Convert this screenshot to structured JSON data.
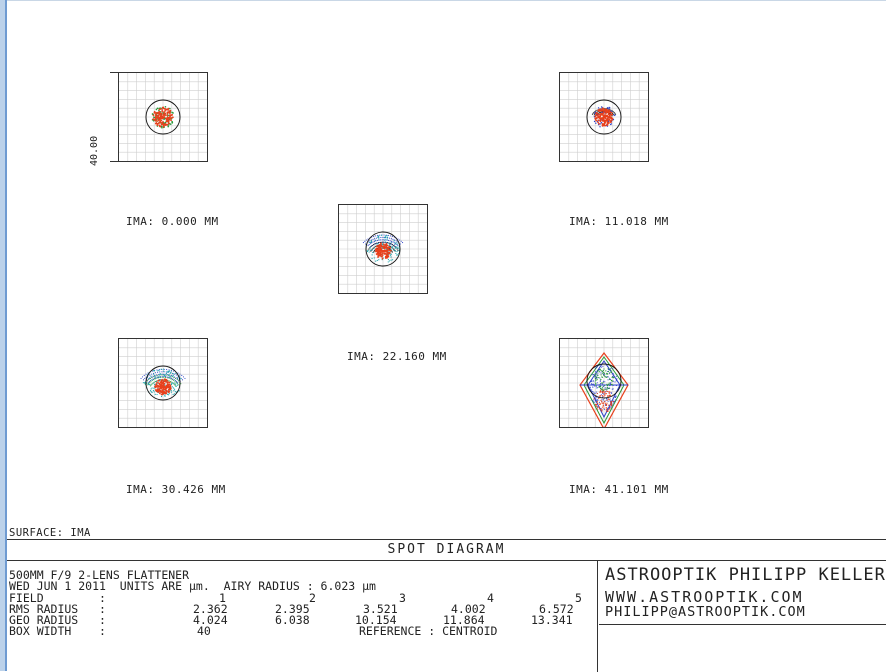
{
  "scale_label": "40.00",
  "spots": [
    {
      "label": "IMA: 0.000 MM",
      "shape": "round"
    },
    {
      "label": "IMA: 11.018 MM",
      "shape": "round2"
    },
    {
      "label": "IMA: 22.160 MM",
      "shape": "flare"
    },
    {
      "label": "IMA: 30.426 MM",
      "shape": "flare2"
    },
    {
      "label": "IMA: 41.101 MM",
      "shape": "diamond"
    }
  ],
  "surface_label": "SURFACE: IMA",
  "title": "SPOT DIAGRAM",
  "info": {
    "line1": "500MM F/9 2-LENS FLATTENER",
    "line2": "WED JUN 1 2011  UNITS ARE µm.  AIRY RADIUS : 6.023 µm",
    "field_label": "FIELD",
    "rms_label": "RMS RADIUS",
    "geo_label": "GEO RADIUS",
    "box_label": "BOX WIDTH",
    "colon": ":",
    "fields": [
      "1",
      "2",
      "3",
      "4",
      "5"
    ],
    "rms": [
      "2.362",
      "2.395",
      "3.521",
      "4.002",
      "6.572"
    ],
    "geo": [
      "4.024",
      "6.038",
      "10.154",
      "11.864",
      "13.341"
    ],
    "box_width": "40",
    "reference": "REFERENCE  : CENTROID"
  },
  "brand": {
    "name": "ASTROOPTIK PHILIPP KELLER",
    "web": "WWW.ASTROOPTIK.COM",
    "email": "PHILIPP@ASTROOPTIK.COM"
  },
  "colors": {
    "red": "#e8401c",
    "green": "#2a9a3a",
    "blue": "#2a3fc8",
    "cyan": "#22a8b0",
    "black": "#111111",
    "grid": "#cfcfcf"
  }
}
